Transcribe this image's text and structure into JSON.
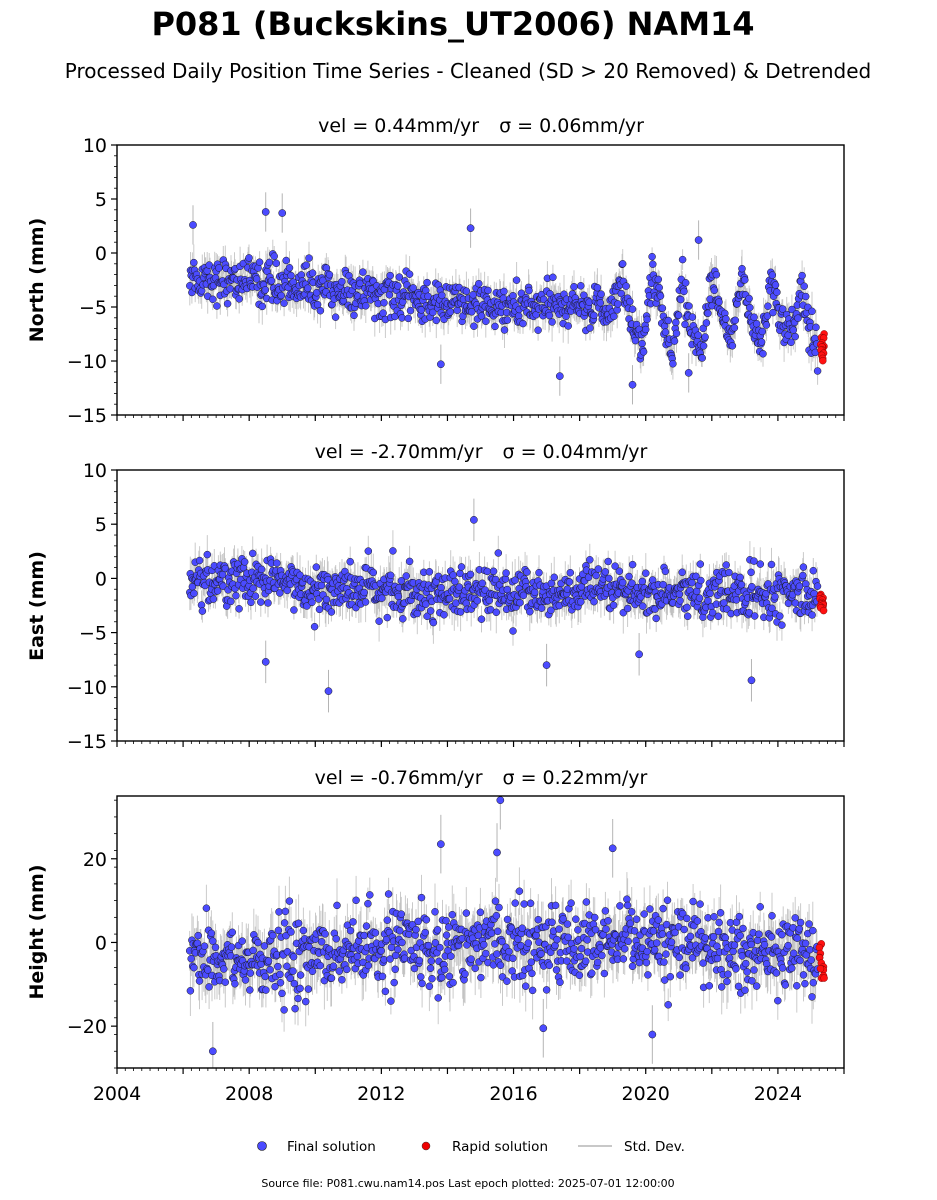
{
  "figure": {
    "title": "P081 (Buckskins_UT2006) NAM14",
    "subtitle": "Processed Daily Position Time Series - Cleaned (SD > 20 Removed) & Detrended",
    "footer": "Source file: P081.cwu.nam14.pos  Last epoch plotted: 2025-07-01 12:00:00"
  },
  "legend": {
    "final": "Final solution",
    "rapid": "Rapid solution",
    "stddev": "Std. Dev."
  },
  "colors": {
    "final": "#4b4bff",
    "final_edge": "#1a1a1a",
    "rapid": "#ff1111",
    "errbar": "#b4b4b4",
    "axis": "#000000"
  },
  "chart_data": [
    {
      "type": "scatter",
      "title": "vel = 0.44mm/yr   σ = 0.06mm/yr",
      "vel_text": "vel = 0.44mm/yr",
      "sigma_text": "σ = 0.06mm/yr",
      "ylabel": "North (mm)",
      "xlim": [
        2004.0,
        2026.0
      ],
      "ylim": [
        -15,
        10
      ],
      "yticks": [
        -15,
        -10,
        -5,
        0,
        5,
        10
      ],
      "ytick_labels": [
        "−15",
        "−10",
        "−5",
        "0",
        "5",
        "10"
      ],
      "data_start": 2006.2,
      "data_end": 2025.2,
      "rapid_start": 2025.2,
      "rapid_end": 2025.5,
      "series": [
        {
          "name": "Final solution",
          "x": [
            2006.2,
            2006.5,
            2007.0,
            2007.5,
            2008.0,
            2008.5,
            2009.0,
            2009.5,
            2010.0,
            2010.5,
            2011.0,
            2011.5,
            2012.0,
            2012.5,
            2013.0,
            2013.5,
            2014.0,
            2014.5,
            2015.0,
            2015.5,
            2016.0,
            2016.5,
            2017.0,
            2017.5,
            2018.0,
            2018.5,
            2019.0,
            2019.3,
            2019.6,
            2019.9,
            2020.2,
            2020.5,
            2020.8,
            2021.1,
            2021.4,
            2021.7,
            2022.0,
            2022.3,
            2022.6,
            2022.9,
            2023.2,
            2023.5,
            2023.8,
            2024.1,
            2024.4,
            2024.7,
            2025.0,
            2025.2
          ],
          "y": [
            -2.0,
            -2.3,
            -2.5,
            -2.4,
            -2.6,
            -2.5,
            -2.8,
            -3.0,
            -3.2,
            -3.5,
            -3.6,
            -3.8,
            -4.0,
            -4.3,
            -4.4,
            -4.6,
            -4.6,
            -4.8,
            -4.9,
            -5.0,
            -5.0,
            -5.1,
            -5.0,
            -5.1,
            -5.0,
            -5.2,
            -4.8,
            -2.5,
            -6.5,
            -8.5,
            -1.5,
            -6.0,
            -9.5,
            -2.5,
            -7.0,
            -9.0,
            -2.0,
            -6.5,
            -8.5,
            -2.0,
            -6.0,
            -8.0,
            -2.5,
            -6.0,
            -8.0,
            -3.0,
            -7.5,
            -8.5
          ]
        },
        {
          "name": "Rapid solution",
          "x": [
            2025.3,
            2025.35,
            2025.4,
            2025.45
          ],
          "y": [
            -7.5,
            -8.5,
            -9.0,
            -10.0
          ]
        }
      ],
      "notable_points": [
        [
          2006.3,
          2.6
        ],
        [
          2008.5,
          3.8
        ],
        [
          2009.0,
          3.7
        ],
        [
          2014.7,
          2.3
        ],
        [
          2013.8,
          -10.3
        ],
        [
          2017.4,
          -11.4
        ],
        [
          2019.6,
          -12.2
        ],
        [
          2021.3,
          -11.1
        ],
        [
          2021.6,
          1.2
        ]
      ]
    },
    {
      "type": "scatter",
      "title": "vel = -2.70mm/yr   σ = 0.04mm/yr",
      "vel_text": "vel = -2.70mm/yr",
      "sigma_text": "σ = 0.04mm/yr",
      "ylabel": "East (mm)",
      "xlim": [
        2004.0,
        2026.0
      ],
      "ylim": [
        -15,
        10
      ],
      "yticks": [
        -15,
        -10,
        -5,
        0,
        5,
        10
      ],
      "ytick_labels": [
        "−15",
        "−10",
        "−5",
        "0",
        "5",
        "10"
      ],
      "data_start": 2006.2,
      "data_end": 2025.2,
      "rapid_start": 2025.2,
      "rapid_end": 2025.5,
      "series": [
        {
          "name": "Final solution",
          "x": [
            2006.2,
            2007.0,
            2008.0,
            2009.0,
            2010.0,
            2011.0,
            2012.0,
            2013.0,
            2014.0,
            2015.0,
            2016.0,
            2017.0,
            2018.0,
            2019.0,
            2020.0,
            2021.0,
            2022.0,
            2023.0,
            2024.0,
            2025.2
          ],
          "y": [
            -0.3,
            -0.2,
            -0.3,
            -0.5,
            -0.8,
            -1.0,
            -1.1,
            -1.2,
            -1.3,
            -1.4,
            -1.4,
            -1.3,
            -1.3,
            -1.2,
            -1.3,
            -1.5,
            -1.4,
            -1.4,
            -1.5,
            -1.6
          ]
        },
        {
          "name": "Rapid solution",
          "x": [
            2025.3,
            2025.35,
            2025.4,
            2025.45
          ],
          "y": [
            -1.5,
            -2.0,
            -2.5,
            -3.0
          ]
        }
      ],
      "notable_points": [
        [
          2014.8,
          5.4
        ],
        [
          2010.4,
          -10.4
        ],
        [
          2008.5,
          -7.7
        ],
        [
          2023.2,
          -9.4
        ],
        [
          2017.0,
          -8.0
        ],
        [
          2019.8,
          -7.0
        ]
      ]
    },
    {
      "type": "scatter",
      "title": "vel = -0.76mm/yr   σ = 0.22mm/yr",
      "vel_text": "vel = -0.76mm/yr",
      "sigma_text": "σ = 0.22mm/yr",
      "ylabel": "Height (mm)",
      "xlim": [
        2004.0,
        2026.0
      ],
      "ylim": [
        -30,
        35
      ],
      "yticks": [
        -20,
        0,
        20
      ],
      "ytick_labels": [
        "−20",
        "0",
        "20"
      ],
      "xticks": [
        2004,
        2008,
        2012,
        2016,
        2020,
        2024
      ],
      "xtick_labels": [
        "2004",
        "2008",
        "2012",
        "2016",
        "2020",
        "2024"
      ],
      "data_start": 2006.2,
      "data_end": 2025.2,
      "rapid_start": 2025.2,
      "rapid_end": 2025.5,
      "series": [
        {
          "name": "Final solution",
          "x": [
            2006.2,
            2007.0,
            2008.0,
            2009.0,
            2010.0,
            2011.0,
            2012.0,
            2013.0,
            2014.0,
            2015.0,
            2016.0,
            2017.0,
            2018.0,
            2019.0,
            2020.0,
            2021.0,
            2022.0,
            2023.0,
            2024.0,
            2025.2
          ],
          "y": [
            -3,
            -4,
            -5,
            -4,
            -3,
            -2,
            -2,
            -1,
            0,
            0,
            1,
            0,
            -1,
            -1,
            0,
            -1,
            0,
            -2,
            -3,
            -3
          ]
        },
        {
          "name": "Rapid solution",
          "x": [
            2025.3,
            2025.35,
            2025.4,
            2025.45
          ],
          "y": [
            0,
            -4,
            -6,
            -9
          ]
        }
      ],
      "notable_points": [
        [
          2015.6,
          34.0
        ],
        [
          2015.5,
          21.5
        ],
        [
          2013.8,
          23.5
        ],
        [
          2019.0,
          22.5
        ],
        [
          2006.9,
          -26.0
        ],
        [
          2016.9,
          -20.5
        ],
        [
          2020.2,
          -22.0
        ]
      ]
    }
  ]
}
